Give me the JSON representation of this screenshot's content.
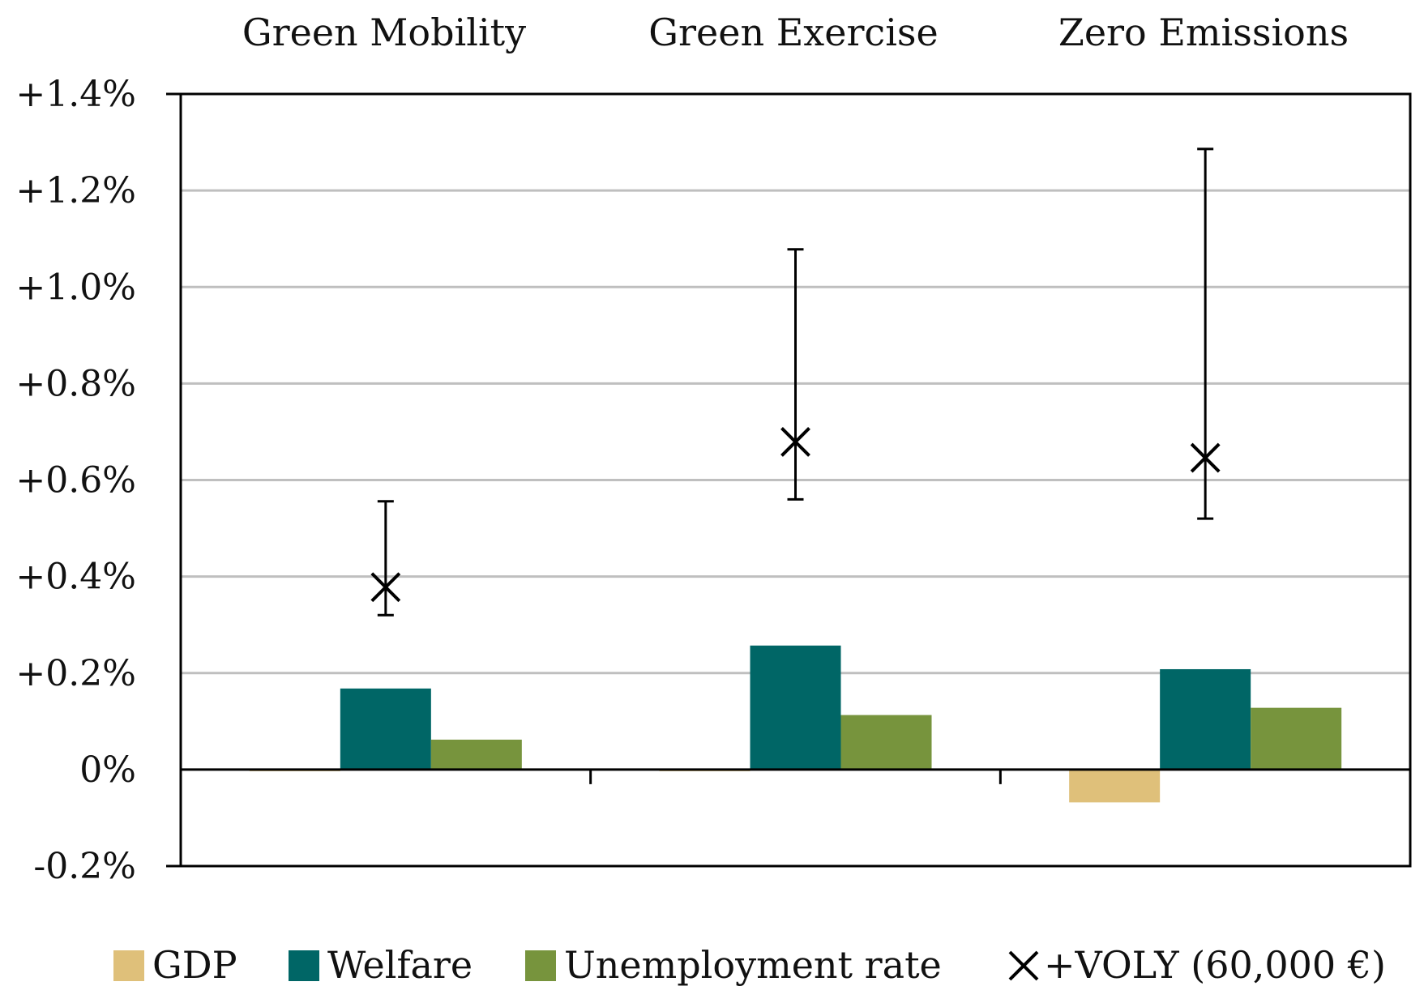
{
  "chart_data": {
    "type": "bar",
    "categories": [
      "Green Mobility",
      "Green Exercise",
      "Zero Emissions"
    ],
    "ylim": [
      -0.2,
      1.4
    ],
    "yticks": [
      1.4,
      1.2,
      1.0,
      0.8,
      0.6,
      0.4,
      0.2,
      0,
      -0.2
    ],
    "ytick_labels": [
      "+1.4%",
      "+1.2%",
      "+1.0%",
      "+0.8%",
      "+0.6%",
      "+0.4%",
      "+0.2%",
      "0%",
      "-0.2%"
    ],
    "grid": true,
    "legend_position": "bottom",
    "series": [
      {
        "name": "GDP",
        "color": "#dfc07a",
        "values": [
          -0.003,
          -0.003,
          -0.068
        ]
      },
      {
        "name": "Welfare",
        "color": "#006666",
        "values": [
          0.168,
          0.257,
          0.208
        ]
      },
      {
        "name": "Unemployment rate",
        "color": "#77943d",
        "values": [
          0.062,
          0.113,
          0.128
        ]
      }
    ],
    "markers": {
      "name": "+VOLY (60,000 €)",
      "symbol": "x",
      "values": [
        0.378,
        0.679,
        0.646
      ],
      "error_low": [
        0.32,
        0.56,
        0.52
      ],
      "error_high": [
        0.556,
        1.078,
        1.286
      ]
    }
  }
}
